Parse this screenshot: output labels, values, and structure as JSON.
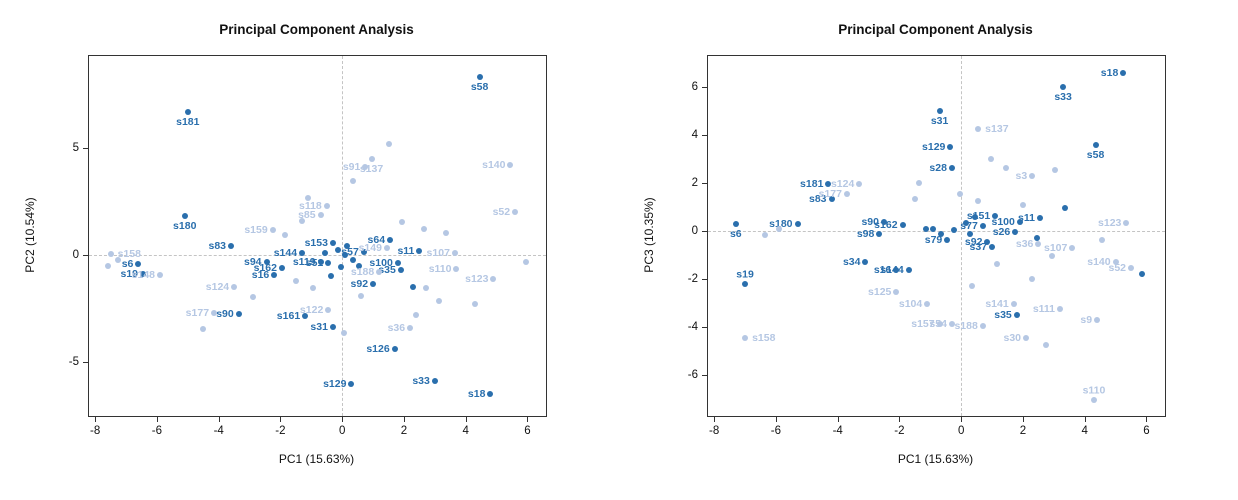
{
  "page": {
    "background": "#ffffff"
  },
  "chart_data": [
    {
      "type": "scatter",
      "title": "Principal Component Analysis",
      "xlabel": "PC1 (15.63%)",
      "ylabel": "PC2 (10.54%)",
      "xlim": [
        -8.2,
        6.6
      ],
      "ylim": [
        -7.5,
        9.3
      ],
      "xticks": [
        -8,
        -6,
        -4,
        -2,
        0,
        2,
        4,
        6
      ],
      "yticks": [
        -5,
        0,
        5
      ],
      "grid": "zero-dashed-crosshair",
      "legend": "none",
      "colors": {
        "dark": "#2a6fad",
        "light": "#b5c7e3"
      },
      "points": [
        {
          "x": 4.45,
          "y": 8.3,
          "c": "d",
          "t": "s58",
          "p": "b"
        },
        {
          "x": -5.0,
          "y": 6.7,
          "c": "d",
          "t": "s181",
          "p": "b"
        },
        {
          "x": -5.1,
          "y": 1.85,
          "c": "d",
          "t": "s180",
          "p": "b"
        },
        {
          "x": -3.6,
          "y": 0.45,
          "c": "d",
          "t": "s83"
        },
        {
          "x": -6.6,
          "y": -0.4,
          "c": "d",
          "t": "s6"
        },
        {
          "x": -6.45,
          "y": -0.85,
          "c": "d",
          "t": "s19"
        },
        {
          "x": -2.45,
          "y": -0.3,
          "c": "d",
          "t": "s94"
        },
        {
          "x": -1.95,
          "y": -0.6,
          "c": "d",
          "t": "s162"
        },
        {
          "x": -2.2,
          "y": -0.9,
          "c": "d",
          "t": "s16"
        },
        {
          "x": -1.3,
          "y": 0.1,
          "c": "d",
          "t": "s144"
        },
        {
          "x": -0.3,
          "y": 0.55,
          "c": "d",
          "t": "s153"
        },
        {
          "x": -0.7,
          "y": -0.3,
          "c": "d",
          "t": "s119"
        },
        {
          "x": -0.45,
          "y": -0.35,
          "c": "d",
          "t": "s51"
        },
        {
          "x": 0.7,
          "y": 0.15,
          "c": "d",
          "t": "s57"
        },
        {
          "x": -1.2,
          "y": -2.85,
          "c": "d",
          "t": "s161"
        },
        {
          "x": -0.3,
          "y": -3.35,
          "c": "d",
          "t": "s31"
        },
        {
          "x": 0.3,
          "y": -6.0,
          "c": "d",
          "t": "s129"
        },
        {
          "x": 1.7,
          "y": -4.35,
          "c": "d",
          "t": "s126"
        },
        {
          "x": 3.0,
          "y": -5.85,
          "c": "d",
          "t": "s33"
        },
        {
          "x": 4.8,
          "y": -6.45,
          "c": "d",
          "t": "s18"
        },
        {
          "x": 1.0,
          "y": -1.35,
          "c": "d",
          "t": "s92"
        },
        {
          "x": 1.9,
          "y": -0.7,
          "c": "d",
          "t": "s35"
        },
        {
          "x": 1.8,
          "y": -0.35,
          "c": "d",
          "t": "s100"
        },
        {
          "x": 2.5,
          "y": 0.2,
          "c": "d",
          "t": "s11"
        },
        {
          "x": 1.55,
          "y": 0.7,
          "c": "d",
          "t": "s64"
        },
        {
          "x": -3.35,
          "y": -2.75,
          "c": "d",
          "t": "s90"
        },
        {
          "x": -0.15,
          "y": 0.25,
          "c": "d"
        },
        {
          "x": 0.1,
          "y": 0.0,
          "c": "d"
        },
        {
          "x": -0.05,
          "y": -0.55,
          "c": "d"
        },
        {
          "x": 0.35,
          "y": -0.2,
          "c": "d"
        },
        {
          "x": -0.55,
          "y": 0.1,
          "c": "d"
        },
        {
          "x": 0.15,
          "y": 0.45,
          "c": "d"
        },
        {
          "x": -0.35,
          "y": -0.95,
          "c": "d"
        },
        {
          "x": 2.3,
          "y": -1.5,
          "c": "d"
        },
        {
          "x": 0.55,
          "y": -0.5,
          "c": "d"
        },
        {
          "x": 0.95,
          "y": 4.5,
          "c": "l",
          "t": "s137",
          "p": "b"
        },
        {
          "x": 0.75,
          "y": 4.1,
          "c": "l",
          "t": "s91"
        },
        {
          "x": 5.45,
          "y": 4.2,
          "c": "l",
          "t": "s140"
        },
        {
          "x": 5.6,
          "y": 2.0,
          "c": "l",
          "t": "s52"
        },
        {
          "x": -7.5,
          "y": 0.05,
          "c": "l",
          "t": "s158",
          "p": "r"
        },
        {
          "x": -5.9,
          "y": -0.9,
          "c": "l",
          "t": "s148"
        },
        {
          "x": -3.5,
          "y": -1.5,
          "c": "l",
          "t": "s124"
        },
        {
          "x": -4.15,
          "y": -2.7,
          "c": "l",
          "t": "s177"
        },
        {
          "x": -2.25,
          "y": 1.2,
          "c": "l",
          "t": "s159"
        },
        {
          "x": -0.5,
          "y": 2.3,
          "c": "l",
          "t": "s118"
        },
        {
          "x": -0.7,
          "y": 1.9,
          "c": "l",
          "t": "s85"
        },
        {
          "x": 3.65,
          "y": 0.1,
          "c": "l",
          "t": "s107"
        },
        {
          "x": 3.7,
          "y": -0.65,
          "c": "l",
          "t": "s110"
        },
        {
          "x": 4.9,
          "y": -1.1,
          "c": "l",
          "t": "s123"
        },
        {
          "x": 2.2,
          "y": -3.4,
          "c": "l",
          "t": "s36"
        },
        {
          "x": -0.45,
          "y": -2.55,
          "c": "l",
          "t": "s122"
        },
        {
          "x": 1.2,
          "y": -0.8,
          "c": "l",
          "t": "s188"
        },
        {
          "x": 1.45,
          "y": 0.35,
          "c": "l",
          "t": "s149"
        },
        {
          "x": 1.5,
          "y": 5.2,
          "c": "l"
        },
        {
          "x": 0.35,
          "y": 3.45,
          "c": "l"
        },
        {
          "x": -1.1,
          "y": 2.65,
          "c": "l"
        },
        {
          "x": -1.85,
          "y": 0.95,
          "c": "l"
        },
        {
          "x": 2.65,
          "y": 1.25,
          "c": "l"
        },
        {
          "x": 3.35,
          "y": 1.05,
          "c": "l"
        },
        {
          "x": 1.95,
          "y": 1.55,
          "c": "l"
        },
        {
          "x": 2.7,
          "y": -1.55,
          "c": "l"
        },
        {
          "x": 3.15,
          "y": -2.15,
          "c": "l"
        },
        {
          "x": 4.3,
          "y": -2.25,
          "c": "l"
        },
        {
          "x": 5.95,
          "y": -0.3,
          "c": "l"
        },
        {
          "x": 2.4,
          "y": -2.8,
          "c": "l"
        },
        {
          "x": -2.9,
          "y": -1.95,
          "c": "l"
        },
        {
          "x": -4.5,
          "y": -3.45,
          "c": "l"
        },
        {
          "x": 0.05,
          "y": -3.65,
          "c": "l"
        },
        {
          "x": -0.95,
          "y": -1.55,
          "c": "l"
        },
        {
          "x": -7.6,
          "y": -0.5,
          "c": "l"
        },
        {
          "x": -7.25,
          "y": -0.2,
          "c": "l"
        },
        {
          "x": -1.5,
          "y": -1.2,
          "c": "l"
        },
        {
          "x": 0.6,
          "y": -1.9,
          "c": "l"
        },
        {
          "x": -1.3,
          "y": 1.6,
          "c": "l"
        }
      ]
    },
    {
      "type": "scatter",
      "title": "Principal Component Analysis",
      "xlabel": "PC1 (15.63%)",
      "ylabel": "PC3 (10.35%)",
      "xlim": [
        -8.2,
        6.6
      ],
      "ylim": [
        -7.7,
        7.3
      ],
      "xticks": [
        -8,
        -6,
        -4,
        -2,
        0,
        2,
        4,
        6
      ],
      "yticks": [
        -6,
        -4,
        -2,
        0,
        2,
        4,
        6
      ],
      "grid": "zero-dashed-crosshair",
      "legend": "none",
      "colors": {
        "dark": "#2a6fad",
        "light": "#b5c7e3"
      },
      "points": [
        {
          "x": 5.25,
          "y": 6.6,
          "c": "d",
          "t": "s18"
        },
        {
          "x": 3.3,
          "y": 6.0,
          "c": "d",
          "t": "s33",
          "p": "b"
        },
        {
          "x": 4.35,
          "y": 3.6,
          "c": "d",
          "t": "s58",
          "p": "b"
        },
        {
          "x": -0.7,
          "y": 5.0,
          "c": "d",
          "t": "s31",
          "p": "b"
        },
        {
          "x": -0.35,
          "y": 3.5,
          "c": "d",
          "t": "s129"
        },
        {
          "x": -0.3,
          "y": 2.65,
          "c": "d",
          "t": "s28"
        },
        {
          "x": -4.3,
          "y": 1.95,
          "c": "d",
          "t": "s181"
        },
        {
          "x": -4.2,
          "y": 1.35,
          "c": "d",
          "t": "s83"
        },
        {
          "x": -5.3,
          "y": 0.3,
          "c": "d",
          "t": "s180"
        },
        {
          "x": -7.3,
          "y": 0.3,
          "c": "d",
          "t": "s6",
          "p": "b"
        },
        {
          "x": -7.0,
          "y": -2.2,
          "c": "d",
          "t": "s19",
          "p": "t"
        },
        {
          "x": -2.5,
          "y": 0.4,
          "c": "d",
          "t": "s90"
        },
        {
          "x": -2.65,
          "y": -0.1,
          "c": "d",
          "t": "s98"
        },
        {
          "x": -1.9,
          "y": 0.25,
          "c": "d",
          "t": "s162"
        },
        {
          "x": -3.1,
          "y": -1.3,
          "c": "d",
          "t": "s34"
        },
        {
          "x": -2.1,
          "y": -1.6,
          "c": "d",
          "t": "s16"
        },
        {
          "x": -1.7,
          "y": -1.6,
          "c": "d",
          "t": "s144"
        },
        {
          "x": 1.1,
          "y": 0.65,
          "c": "d",
          "t": "s151"
        },
        {
          "x": 1.9,
          "y": 0.4,
          "c": "d",
          "t": "s100"
        },
        {
          "x": 2.55,
          "y": 0.55,
          "c": "d",
          "t": "s11"
        },
        {
          "x": 0.7,
          "y": 0.2,
          "c": "d",
          "t": "s77"
        },
        {
          "x": 1.75,
          "y": -0.05,
          "c": "d",
          "t": "s26"
        },
        {
          "x": 0.85,
          "y": -0.45,
          "c": "d",
          "t": "s92"
        },
        {
          "x": 1.0,
          "y": -0.65,
          "c": "d",
          "t": "s37"
        },
        {
          "x": -0.45,
          "y": -0.35,
          "c": "d",
          "t": "s79"
        },
        {
          "x": 1.8,
          "y": -3.5,
          "c": "d",
          "t": "s35"
        },
        {
          "x": -0.9,
          "y": 0.1,
          "c": "d"
        },
        {
          "x": -0.25,
          "y": 0.05,
          "c": "d"
        },
        {
          "x": 0.15,
          "y": 0.35,
          "c": "d"
        },
        {
          "x": 0.3,
          "y": -0.1,
          "c": "d"
        },
        {
          "x": -0.65,
          "y": -0.1,
          "c": "d"
        },
        {
          "x": 0.45,
          "y": 0.6,
          "c": "d"
        },
        {
          "x": -1.15,
          "y": 0.1,
          "c": "d"
        },
        {
          "x": 2.45,
          "y": -0.3,
          "c": "d"
        },
        {
          "x": 3.35,
          "y": 0.95,
          "c": "d"
        },
        {
          "x": 5.85,
          "y": -1.8,
          "c": "d"
        },
        {
          "x": 0.55,
          "y": 4.25,
          "c": "l",
          "t": "s137",
          "p": "r"
        },
        {
          "x": -3.3,
          "y": 1.95,
          "c": "l",
          "t": "s124"
        },
        {
          "x": -3.7,
          "y": 1.55,
          "c": "l",
          "t": "s177"
        },
        {
          "x": 2.3,
          "y": 2.3,
          "c": "l",
          "t": "s3"
        },
        {
          "x": 5.35,
          "y": 0.35,
          "c": "l",
          "t": "s123"
        },
        {
          "x": 3.6,
          "y": -0.7,
          "c": "l",
          "t": "s107"
        },
        {
          "x": 5.0,
          "y": -1.3,
          "c": "l",
          "t": "s140"
        },
        {
          "x": 5.5,
          "y": -1.55,
          "c": "l",
          "t": "s52"
        },
        {
          "x": 2.1,
          "y": -4.45,
          "c": "l",
          "t": "s30"
        },
        {
          "x": 3.2,
          "y": -3.25,
          "c": "l",
          "t": "s111"
        },
        {
          "x": 4.4,
          "y": -3.7,
          "c": "l",
          "t": "s9"
        },
        {
          "x": 1.7,
          "y": -3.05,
          "c": "l",
          "t": "s141"
        },
        {
          "x": -1.1,
          "y": -3.05,
          "c": "l",
          "t": "s104"
        },
        {
          "x": -2.1,
          "y": -2.55,
          "c": "l",
          "t": "s125"
        },
        {
          "x": -0.7,
          "y": -3.85,
          "c": "l",
          "t": "s157"
        },
        {
          "x": -0.3,
          "y": -3.85,
          "c": "l",
          "t": "s54"
        },
        {
          "x": 0.7,
          "y": -3.95,
          "c": "l",
          "t": "s188"
        },
        {
          "x": -7.0,
          "y": -4.45,
          "c": "l",
          "t": "s158",
          "p": "r"
        },
        {
          "x": 4.3,
          "y": -7.05,
          "c": "l",
          "t": "s110",
          "p": "t"
        },
        {
          "x": 2.5,
          "y": -0.55,
          "c": "l",
          "t": "s36"
        },
        {
          "x": -5.9,
          "y": 0.1,
          "c": "l"
        },
        {
          "x": -6.35,
          "y": -0.15,
          "c": "l"
        },
        {
          "x": 3.05,
          "y": 2.55,
          "c": "l"
        },
        {
          "x": 1.45,
          "y": 2.65,
          "c": "l"
        },
        {
          "x": -1.5,
          "y": 1.35,
          "c": "l"
        },
        {
          "x": 0.35,
          "y": -2.3,
          "c": "l"
        },
        {
          "x": 2.3,
          "y": -2.0,
          "c": "l"
        },
        {
          "x": 2.95,
          "y": -1.05,
          "c": "l"
        },
        {
          "x": 4.55,
          "y": -0.35,
          "c": "l"
        },
        {
          "x": -0.05,
          "y": 1.55,
          "c": "l"
        },
        {
          "x": 0.55,
          "y": 1.25,
          "c": "l"
        },
        {
          "x": 2.75,
          "y": -4.75,
          "c": "l"
        },
        {
          "x": 1.15,
          "y": -1.35,
          "c": "l"
        },
        {
          "x": 2.0,
          "y": 1.1,
          "c": "l"
        },
        {
          "x": -1.35,
          "y": 2.0,
          "c": "l"
        },
        {
          "x": 0.95,
          "y": 3.0,
          "c": "l"
        }
      ]
    }
  ]
}
